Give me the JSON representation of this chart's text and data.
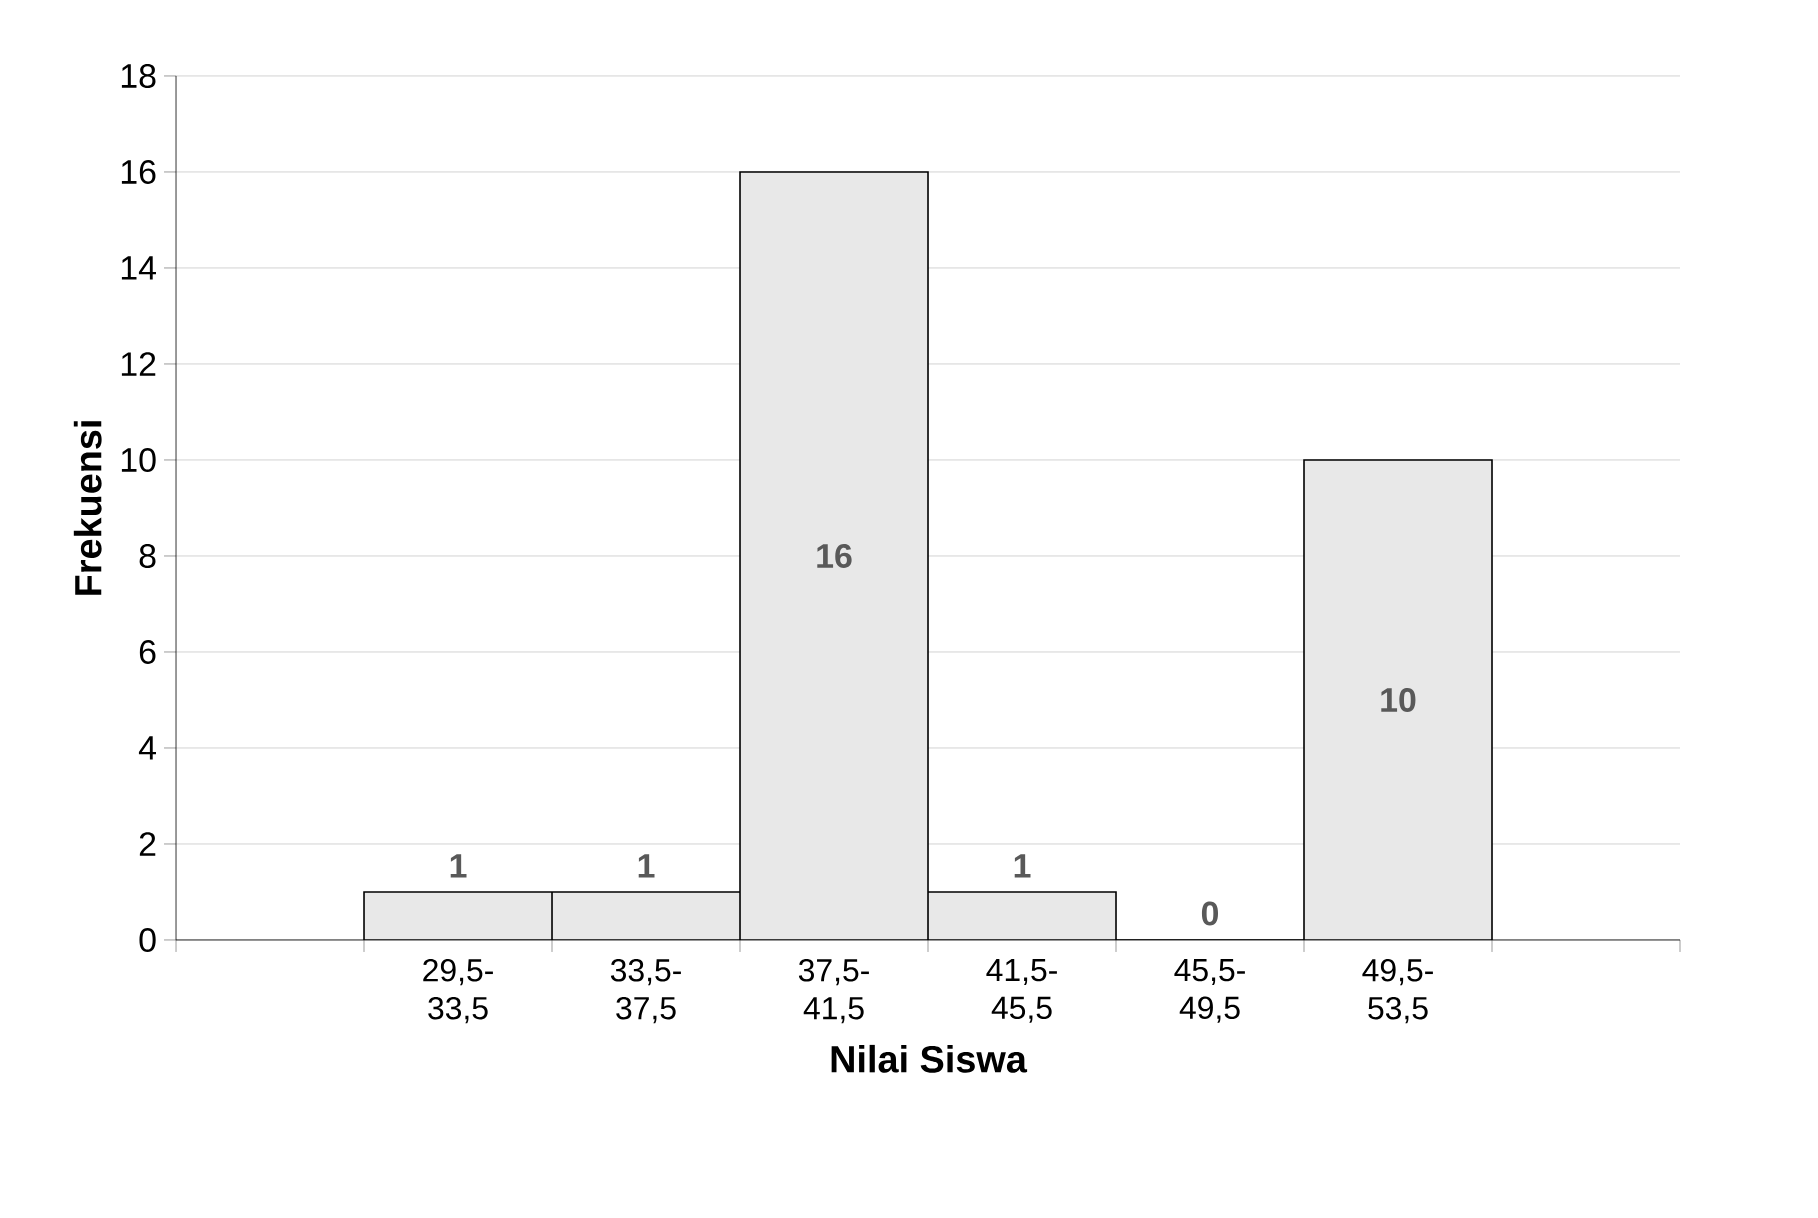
{
  "chart_data": {
    "type": "bar",
    "xlabel": "Nilai Siswa",
    "ylabel": "Frekuensi",
    "categories": [
      null,
      "29,5-33,5",
      "33,5-37,5",
      "37,5-41,5",
      "41,5-45,5",
      "45,5-49,5",
      "49,5-53,5",
      null
    ],
    "values": [
      null,
      1,
      1,
      16,
      1,
      0,
      10,
      null
    ],
    "color": "#e8e8e8",
    "ylim": [
      0,
      18
    ],
    "yticks": [
      0,
      2,
      4,
      6,
      8,
      10,
      12,
      14,
      16,
      18
    ],
    "grid": "y",
    "data_labels": true
  }
}
